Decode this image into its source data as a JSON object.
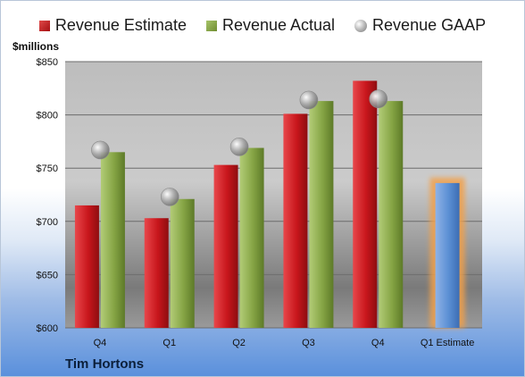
{
  "legend": {
    "estimate": "Revenue Estimate",
    "actual": "Revenue Actual",
    "gaap": "Revenue GAAP"
  },
  "unit_label": "$millions",
  "company": "Tim Hortons",
  "colors": {
    "estimate": "#c4161c",
    "actual": "#7f9e3e",
    "gaap": "#a0a0a0",
    "future_estimate": "#5b8fd4",
    "future_glow": "#f2a04a"
  },
  "chart_data": {
    "type": "bar",
    "ylabel": "$millions",
    "ylim": [
      600,
      850
    ],
    "yticks": [
      600,
      650,
      700,
      750,
      800,
      850
    ],
    "ytick_labels": [
      "$600",
      "$650",
      "$700",
      "$750",
      "$800",
      "$850"
    ],
    "grid": true,
    "legend_position": "top",
    "categories": [
      "Q4",
      "Q1",
      "Q2",
      "Q3",
      "Q4",
      "Q1 Estimate"
    ],
    "series": [
      {
        "name": "Revenue Estimate",
        "values": [
          715,
          703,
          753,
          801,
          832,
          null
        ]
      },
      {
        "name": "Revenue Actual",
        "values": [
          765,
          721,
          769,
          813,
          813,
          null
        ]
      },
      {
        "name": "Revenue GAAP",
        "type": "scatter",
        "values": [
          767,
          723,
          770,
          814,
          815,
          null
        ]
      }
    ],
    "forward_estimate": {
      "category": "Q1 Estimate",
      "value": 736
    }
  }
}
